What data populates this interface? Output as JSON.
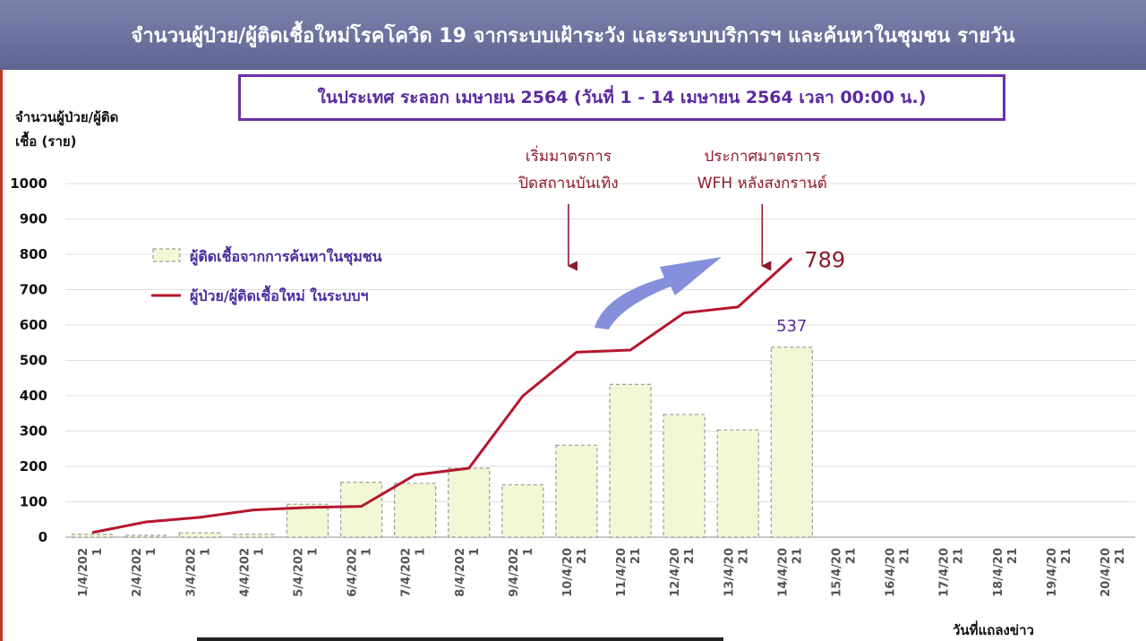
{
  "header": {
    "title": "จำนวนผู้ป่วย/ผู้ติดเชื้อใหม่โรคโควิด 19 จากระบบเฝ้าระวัง และระบบบริการฯ และค้นหาในชุมชน รายวัน",
    "subtitle": "ในประเทศ ระลอก เมษายน 2564   (วันที่ 1 - 14 เมษายน 2564 เวลา 00:00 น.)"
  },
  "colors": {
    "header_bg": "#6e7399",
    "subtitle_border": "#6b2fa8",
    "bar_fill": "#f4f7d6",
    "line": "#b5162d",
    "arrow": "#7b86d9",
    "annotation": "#8b1a2b"
  },
  "chart_data": {
    "type": "bar+line",
    "ylabel_lines": [
      "จำนวนผู้ป่วย/ผู้ติด",
      "เชื้อ (ราย)"
    ],
    "xlabel": "วันที่แถลงข่าว",
    "ylim": [
      0,
      1000
    ],
    "yticks": [
      0,
      100,
      200,
      300,
      400,
      500,
      600,
      700,
      800,
      900,
      1000
    ],
    "grid": true,
    "categories": [
      [
        "1/4/202",
        "1"
      ],
      [
        "2/4/202",
        "1"
      ],
      [
        "3/4/202",
        "1"
      ],
      [
        "4/4/202",
        "1"
      ],
      [
        "5/4/202",
        "1"
      ],
      [
        "6/4/202",
        "1"
      ],
      [
        "7/4/202",
        "1"
      ],
      [
        "8/4/202",
        "1"
      ],
      [
        "9/4/202",
        "1"
      ],
      [
        "10/4/20",
        "21"
      ],
      [
        "11/4/20",
        "21"
      ],
      [
        "12/4/20",
        "21"
      ],
      [
        "13/4/20",
        "21"
      ],
      [
        "14/4/20",
        "21"
      ],
      [
        "15/4/20",
        "21"
      ],
      [
        "16/4/20",
        "21"
      ],
      [
        "17/4/20",
        "21"
      ],
      [
        "18/4/20",
        "21"
      ],
      [
        "19/4/20",
        "21"
      ],
      [
        "20/4/20",
        "21"
      ]
    ],
    "series": [
      {
        "name": "ผู้ติดเชื้อจากการค้นหาในชุมชน",
        "type": "bar",
        "values": [
          8,
          5,
          12,
          8,
          93,
          155,
          152,
          195,
          148,
          260,
          432,
          347,
          303,
          537,
          null,
          null,
          null,
          null,
          null,
          null
        ]
      },
      {
        "name": "ผู้ป่วย/ผู้ติดเชื้อใหม่ ในระบบฯ",
        "type": "line",
        "values": [
          13,
          43,
          56,
          77,
          84,
          87,
          176,
          195,
          399,
          523,
          529,
          634,
          651,
          789,
          null,
          null,
          null,
          null,
          null,
          null
        ]
      }
    ],
    "data_labels": [
      {
        "series": 1,
        "index": 13,
        "text": "789"
      },
      {
        "series": 0,
        "index": 13,
        "text": "537"
      }
    ],
    "annotations": [
      {
        "lines": [
          "เริ่มมาตรการ",
          "ปิดสถานบันเทิง"
        ],
        "index": 9
      },
      {
        "lines": [
          "ประกาศมาตรการ",
          "WFH หลังสงกรานต์"
        ],
        "index": 12.5
      }
    ],
    "legend_position": "upper-left"
  }
}
